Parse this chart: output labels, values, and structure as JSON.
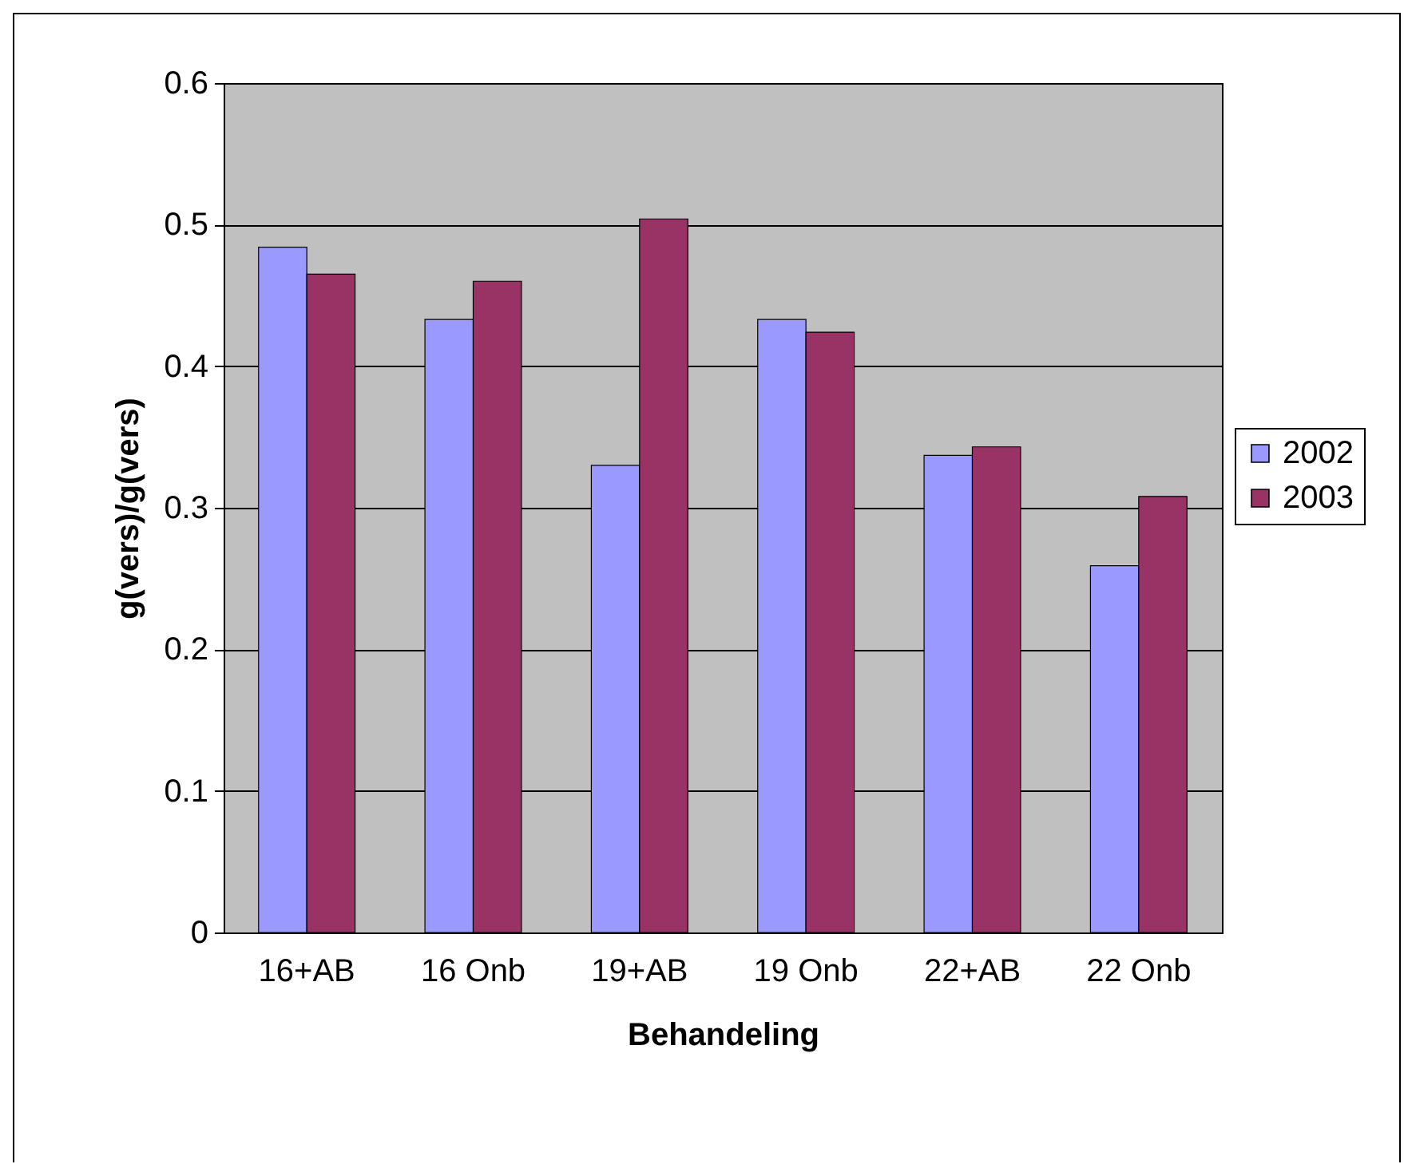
{
  "chart_data": {
    "type": "bar",
    "xlabel": "Behandeling",
    "ylabel": "g(vers)/g(vers)",
    "categories": [
      "16+AB",
      "16 Onb",
      "19+AB",
      "19 Onb",
      "22+AB",
      "22 Onb"
    ],
    "series": [
      {
        "name": "2002",
        "color": "#9999ff",
        "values": [
          0.484,
          0.433,
          0.33,
          0.433,
          0.337,
          0.259
        ]
      },
      {
        "name": "2003",
        "color": "#993366",
        "values": [
          0.465,
          0.46,
          0.504,
          0.424,
          0.343,
          0.308
        ]
      }
    ],
    "ylim": [
      0,
      0.6
    ],
    "yticks": [
      0,
      {
        "value": 0.1,
        "label": "0.1"
      },
      {
        "value": 0.2,
        "label": "0.2"
      },
      {
        "value": 0.3,
        "label": "0.3"
      },
      {
        "value": 0.4,
        "label": "0.4"
      },
      {
        "value": 0.5,
        "label": "0.5"
      },
      {
        "value": 0.6,
        "label": "0.6"
      }
    ],
    "grid": "y",
    "legend": "right"
  }
}
